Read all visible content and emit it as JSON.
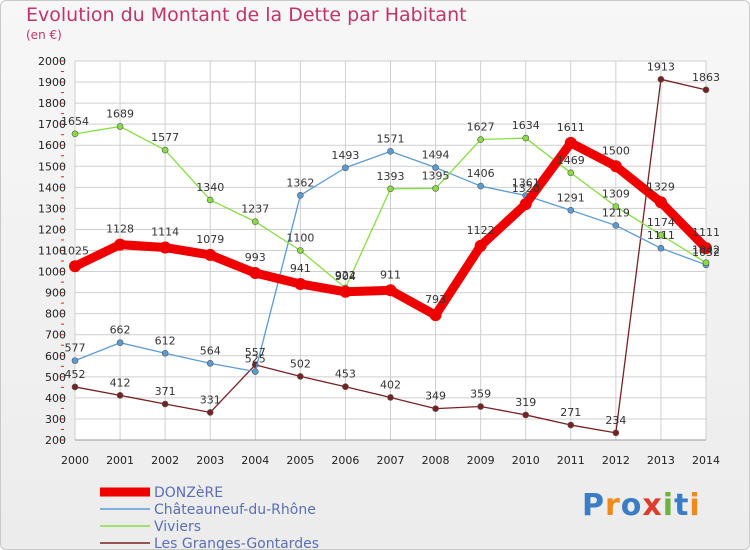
{
  "header": {
    "title": "Evolution du Montant de la Dette par Habitant",
    "subtitle": "(en €)"
  },
  "logo": {
    "text": "Proxiti",
    "letters": [
      {
        "ch": "P",
        "color": "#3b7dc4"
      },
      {
        "ch": "r",
        "color": "#f08a1c"
      },
      {
        "ch": "o",
        "color": "#3b7dc4"
      },
      {
        "ch": "x",
        "color": "#e03a2a"
      },
      {
        "ch": "i",
        "color": "#6db33f"
      },
      {
        "ch": "t",
        "color": "#3b7dc4"
      },
      {
        "ch": "i",
        "color": "#f08a1c"
      }
    ]
  },
  "chart_data": {
    "type": "line",
    "title": "Evolution du Montant de la Dette par Habitant",
    "subtitle": "(en €)",
    "x": [
      2000,
      2001,
      2002,
      2003,
      2004,
      2005,
      2006,
      2007,
      2008,
      2009,
      2010,
      2011,
      2012,
      2013,
      2014
    ],
    "ylim": [
      200,
      2000
    ],
    "yticks": [
      200,
      300,
      400,
      500,
      600,
      700,
      800,
      900,
      1000,
      1100,
      1200,
      1300,
      1400,
      1500,
      1600,
      1700,
      1800,
      1900,
      2000
    ],
    "grid": true,
    "legend_position": "bottom-left",
    "series": [
      {
        "name": "DONZèRE",
        "color": "#ee0000",
        "values": [
          1025,
          1128,
          1114,
          1079,
          993,
          941,
          904,
          911,
          793,
          1122,
          1320,
          1611,
          1500,
          1329,
          1111
        ]
      },
      {
        "name": "Châteauneuf-du-Rhône",
        "color": "#5b9bd5",
        "values": [
          577,
          662,
          612,
          564,
          525,
          1362,
          1493,
          1571,
          1494,
          1406,
          1361,
          1291,
          1219,
          1111,
          1032
        ]
      },
      {
        "name": "Viviers",
        "color": "#88dd44",
        "values": [
          1654,
          1689,
          1577,
          1340,
          1237,
          1100,
          922,
          1393,
          1395,
          1627,
          1634,
          1469,
          1309,
          1174,
          1042
        ]
      },
      {
        "name": "Les Granges-Gontardes",
        "color": "#772222",
        "values": [
          452,
          412,
          371,
          331,
          557,
          502,
          453,
          402,
          349,
          359,
          319,
          271,
          234,
          1913,
          1863
        ]
      }
    ]
  }
}
